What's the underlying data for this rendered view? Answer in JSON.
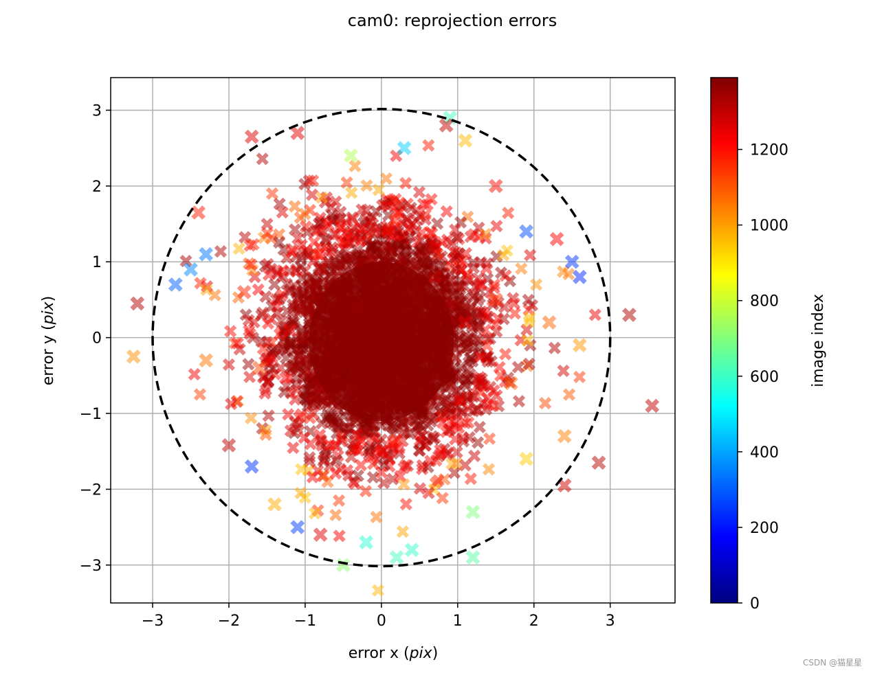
{
  "chart_data": {
    "type": "scatter",
    "title": "cam0: reprojection errors",
    "xlabel_prefix": "error x (",
    "xlabel_var": "pix",
    "xlabel_suffix": ")",
    "ylabel_prefix": "error y (",
    "ylabel_var": "pix",
    "ylabel_suffix": ")",
    "xlim": [
      -3.55,
      3.85
    ],
    "ylim": [
      -3.5,
      3.43
    ],
    "xticks": [
      -3,
      -2,
      -1,
      0,
      1,
      2,
      3
    ],
    "yticks": [
      -3,
      -2,
      -1,
      0,
      1,
      2,
      3
    ],
    "xtick_labels": [
      "−3",
      "−2",
      "−1",
      "0",
      "1",
      "2",
      "3"
    ],
    "ytick_labels": [
      "−3",
      "−2",
      "−1",
      "0",
      "1",
      "2",
      "3"
    ],
    "grid": true,
    "marker": "X",
    "alpha": 0.5,
    "reference_circle": {
      "center": [
        0,
        0
      ],
      "radius": 3.0,
      "style": "dashed",
      "color": "#000000"
    },
    "colorbar": {
      "label": "image index",
      "min": 0,
      "max": 1390,
      "ticks": [
        0,
        200,
        400,
        600,
        800,
        1000,
        1200
      ],
      "tick_labels": [
        "0",
        "200",
        "400",
        "600",
        "800",
        "1000",
        "1200"
      ],
      "colormap": "jet",
      "colormap_stops": [
        "#00007f",
        "#0000ff",
        "#007fff",
        "#00ffff",
        "#7fff7f",
        "#ffff00",
        "#ff7f00",
        "#ff0000",
        "#7f0000"
      ]
    },
    "series": [
      {
        "name": "reprojection errors",
        "points": [
          [
            0.0,
            0.0,
            1380
          ],
          [
            0.2,
            0.3,
            1370
          ],
          [
            -0.3,
            0.4,
            1360
          ],
          [
            0.4,
            -0.3,
            1375
          ],
          [
            -0.5,
            -0.5,
            1385
          ],
          [
            0.7,
            0.8,
            1300
          ],
          [
            -0.8,
            0.9,
            1290
          ],
          [
            0.9,
            -0.9,
            1310
          ],
          [
            -0.9,
            -1.0,
            1280
          ],
          [
            1.1,
            0.2,
            1250
          ],
          [
            -1.2,
            0.1,
            1240
          ],
          [
            0.1,
            1.4,
            1260
          ],
          [
            0.0,
            -1.5,
            1270
          ],
          [
            1.5,
            0.5,
            1150
          ],
          [
            -1.6,
            -0.4,
            1120
          ],
          [
            1.7,
            -0.6,
            1090
          ],
          [
            -1.8,
            0.6,
            1170
          ],
          [
            2.2,
            0.2,
            1080
          ],
          [
            -2.3,
            -0.3,
            1060
          ],
          [
            2.4,
            -1.3,
            1040
          ],
          [
            -2.3,
            1.1,
            330
          ],
          [
            -2.5,
            0.9,
            360
          ],
          [
            -2.7,
            0.7,
            300
          ],
          [
            2.5,
            1.0,
            250
          ],
          [
            2.6,
            0.8,
            230
          ],
          [
            1.9,
            1.4,
            280
          ],
          [
            -1.1,
            -2.5,
            260
          ],
          [
            -1.7,
            -1.7,
            240
          ],
          [
            0.3,
            2.5,
            460
          ],
          [
            -0.5,
            -3.0,
            720
          ],
          [
            0.2,
            -2.9,
            620
          ],
          [
            0.9,
            2.9,
            610
          ],
          [
            -0.2,
            -2.7,
            580
          ],
          [
            0.4,
            -2.8,
            590
          ],
          [
            1.2,
            -2.9,
            640
          ],
          [
            1.2,
            -2.3,
            700
          ],
          [
            -0.4,
            2.4,
            760
          ],
          [
            1.1,
            2.6,
            960
          ],
          [
            -1.4,
            -2.2,
            980
          ],
          [
            1.9,
            -1.6,
            940
          ],
          [
            2.6,
            -0.1,
            1010
          ],
          [
            -3.2,
            0.45,
            1320
          ],
          [
            -3.25,
            -0.25,
            1020
          ],
          [
            3.25,
            0.3,
            1330
          ],
          [
            3.55,
            -0.9,
            1300
          ],
          [
            2.85,
            -1.65,
            1310
          ],
          [
            -1.7,
            2.65,
            1260
          ],
          [
            -1.1,
            2.7,
            1250
          ],
          [
            0.85,
            2.8,
            1290
          ],
          [
            -2.0,
            -1.42,
            1300
          ],
          [
            -0.8,
            -2.6,
            1260
          ],
          [
            2.4,
            -1.95,
            1280
          ],
          [
            -2.4,
            1.65,
            1180
          ],
          [
            1.5,
            2.0,
            1200
          ],
          [
            2.3,
            1.3,
            1220
          ],
          [
            0.6,
            0.9,
            1385
          ],
          [
            -0.7,
            0.2,
            1382
          ],
          [
            0.5,
            -1.0,
            1378
          ],
          [
            -0.2,
            -1.1,
            1384
          ],
          [
            0.9,
            0.1,
            1386
          ]
        ]
      }
    ]
  },
  "watermark": "CSDN @猫星星"
}
